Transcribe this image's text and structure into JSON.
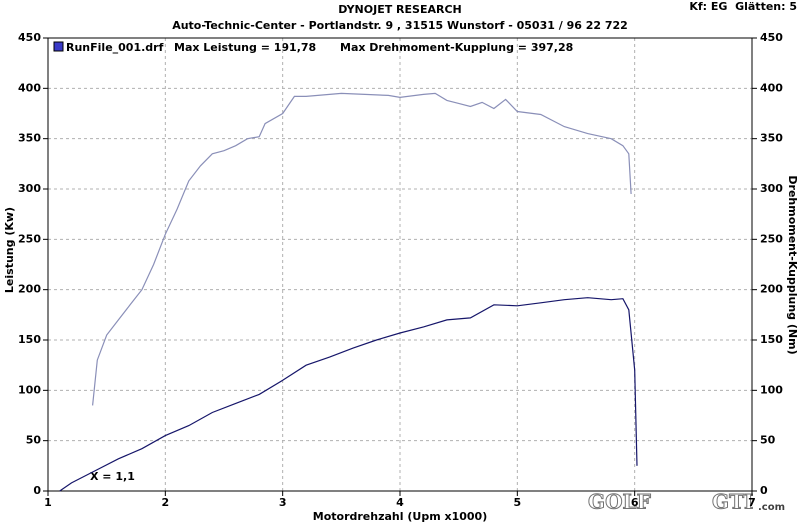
{
  "chart_data": {
    "type": "line",
    "title": "DYNOJET RESEARCH",
    "subtitle": "Auto-Technic-Center - Portlandstr. 9 , 31515 Wunstorf - 05031 / 96 22 722",
    "corner_note": "Kf: EG  Glätten: 5",
    "x_label": "Motordrehzahl (Upm x1000)",
    "y_label": "Leistung (Kw)",
    "y2_label": "Drehmoment-Kupplung (Nm)",
    "annotations": [
      "Max Leistung = 191,78",
      "Max Drehmoment-Kupplung = 397,28",
      "X = 1,1"
    ],
    "watermark": [
      "GOLF",
      "GTI",
      ".com"
    ],
    "legend_color": "#3a3ac8",
    "xlim": [
      1,
      7
    ],
    "xticks": [
      1,
      2,
      3,
      4,
      5,
      6,
      7
    ],
    "ylim": [
      0,
      450
    ],
    "yticks": [
      0,
      50,
      100,
      150,
      200,
      250,
      300,
      350,
      400,
      450
    ],
    "y2lim": [
      0,
      450
    ],
    "y2ticks": [
      0,
      50,
      100,
      150,
      200,
      250,
      300,
      350,
      400,
      450
    ],
    "grid": true,
    "series": [
      {
        "name": "RunFile_001.drf",
        "color": "#16166a",
        "x": [
          1.1,
          1.2,
          1.4,
          1.6,
          1.8,
          2.0,
          2.2,
          2.4,
          2.6,
          2.8,
          3.0,
          3.2,
          3.4,
          3.6,
          3.8,
          4.0,
          4.2,
          4.4,
          4.6,
          4.8,
          5.0,
          5.2,
          5.4,
          5.6,
          5.8,
          5.9,
          5.95,
          6.0,
          6.02
        ],
        "values": [
          0,
          8,
          20,
          32,
          42,
          55,
          65,
          78,
          87,
          96,
          110,
          125,
          133,
          142,
          150,
          157,
          163,
          170,
          172,
          185,
          184,
          187,
          190,
          192,
          190,
          191,
          180,
          120,
          25
        ]
      },
      {
        "color": "#8a8fb8",
        "axis": "y2",
        "x": [
          1.38,
          1.42,
          1.5,
          1.6,
          1.7,
          1.8,
          1.9,
          2.0,
          2.1,
          2.2,
          2.3,
          2.4,
          2.5,
          2.6,
          2.7,
          2.8,
          2.85,
          3.0,
          3.1,
          3.2,
          3.3,
          3.5,
          3.7,
          3.9,
          4.0,
          4.2,
          4.3,
          4.4,
          4.5,
          4.6,
          4.7,
          4.8,
          4.9,
          5.0,
          5.2,
          5.4,
          5.6,
          5.8,
          5.9,
          5.95,
          5.97
        ],
        "values": [
          85,
          130,
          155,
          170,
          185,
          200,
          225,
          255,
          280,
          308,
          323,
          335,
          338,
          343,
          350,
          352,
          365,
          375,
          392,
          392,
          393,
          395,
          394,
          393,
          391,
          394,
          395,
          388,
          385,
          382,
          386,
          380,
          389,
          377,
          374,
          362,
          355,
          350,
          343,
          335,
          295
        ]
      }
    ]
  }
}
